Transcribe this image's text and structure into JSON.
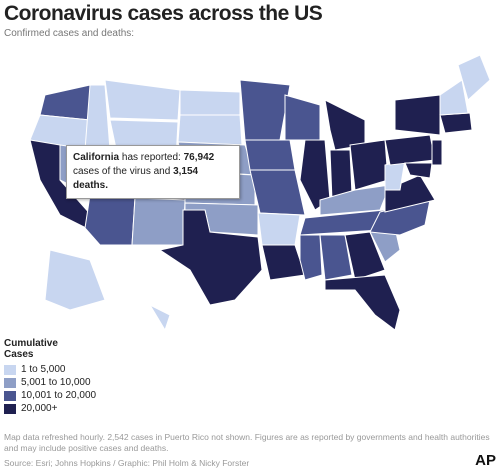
{
  "header": {
    "title": "Coronavirus cases across the US",
    "subtitle": "Confirmed cases and deaths:"
  },
  "tooltip": {
    "state": "California",
    "text1": "has reported:",
    "cases": "76,942",
    "text2": "cases of the virus and",
    "deaths": "3,154 deaths."
  },
  "legend": {
    "title": "Cumulative Cases",
    "items": [
      {
        "label": "1 to 5,000",
        "color": "#c8d6f0"
      },
      {
        "label": "5,001 to 10,000",
        "color": "#8e9ec6"
      },
      {
        "label": "10,001 to 20,000",
        "color": "#4a5590"
      },
      {
        "label": "20,000+",
        "color": "#1f2050"
      }
    ]
  },
  "footer": {
    "note": "Map data refreshed hourly. 2,542 cases in Puerto Rico not shown. Figures are as reported by governments and health authorities and may include positive cases and deaths.",
    "source": "Source: Esri; Johns Hopkins / Graphic: Phil Holm & Nicky Forster",
    "logo": "AP"
  }
}
